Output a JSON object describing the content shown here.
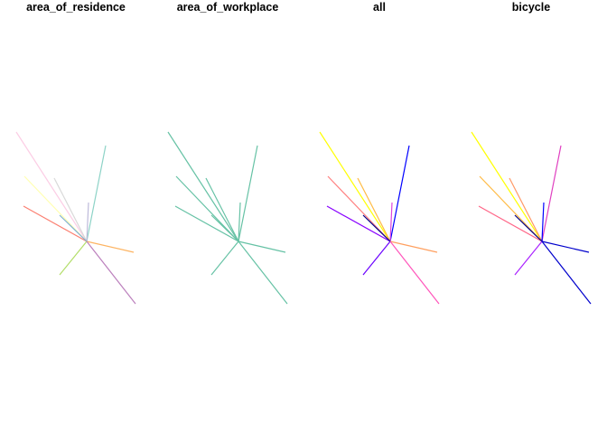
{
  "chart_data": {
    "type": "line",
    "panels": [
      {
        "title": "area_of_residence",
        "colors": [
          "#fccde5",
          "#8dd3c7",
          "#ffffb3",
          "#d9d9d9",
          "#bebada",
          "#fb8072",
          "#80b1d3",
          "#fdb462",
          "#b3de69",
          "#bc80bd"
        ]
      },
      {
        "title": "area_of_workplace",
        "colors": [
          "#66c2a5",
          "#66c2a5",
          "#66c2a5",
          "#66c2a5",
          "#66c2a5",
          "#66c2a5",
          "#66c2a5",
          "#66c2a5",
          "#66c2a5",
          "#66c2a5"
        ]
      },
      {
        "title": "all",
        "colors": [
          "#ffff00",
          "#0000ff",
          "#ff8080",
          "#ffbb44",
          "#dd44dd",
          "#8800ff",
          "#000088",
          "#ffa060",
          "#6a00ff",
          "#ff55bb"
        ]
      },
      {
        "title": "bicycle",
        "colors": [
          "#ffff00",
          "#e040c0",
          "#ffbb44",
          "#ff9966",
          "#0000ff",
          "#ff6688",
          "#000088",
          "#0000cc",
          "#aa22ff",
          "#0000cc"
        ]
      }
    ]
  }
}
